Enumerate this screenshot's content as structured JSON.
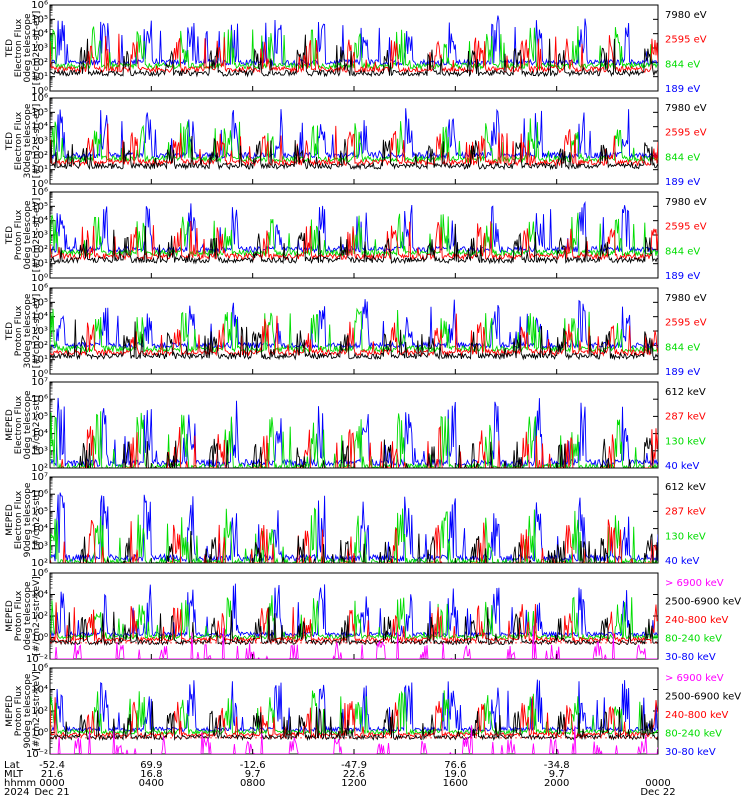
{
  "colors": {
    "blue": "#0000ff",
    "red": "#ff0000",
    "green": "#00dd00",
    "black": "#000000",
    "magenta": "#ff00ff"
  },
  "chart_data": {
    "type": "line",
    "panels": [
      {
        "ylabel_lines": [
          "TED",
          "Electron Flux",
          "0deg telescope",
          "[#/cm2-s-str-eV]"
        ],
        "yticks": [
          "10⁰",
          "10¹",
          "10²",
          "10³",
          "10⁴",
          "10⁵",
          "10⁶"
        ],
        "ylim_exp": [
          0,
          6
        ],
        "log": true,
        "baseline_exp": 2,
        "legend": [
          {
            "name": "7980 eV",
            "color": "#000000"
          },
          {
            "name": "2595 eV",
            "color": "#ff0000"
          },
          {
            "name": "844 eV",
            "color": "#00dd00"
          },
          {
            "name": "189 eV",
            "color": "#0000ff"
          }
        ]
      },
      {
        "ylabel_lines": [
          "TED",
          "Electron Flux",
          "30deg telescope",
          "[#/cm2-s-str-eV]"
        ],
        "yticks": [
          "10⁰",
          "10¹",
          "10²",
          "10³",
          "10⁴",
          "10⁵",
          "10⁶"
        ],
        "ylim_exp": [
          0,
          6
        ],
        "log": true,
        "baseline_exp": 2,
        "legend": [
          {
            "name": "7980 eV",
            "color": "#000000"
          },
          {
            "name": "2595 eV",
            "color": "#ff0000"
          },
          {
            "name": "844 eV",
            "color": "#00dd00"
          },
          {
            "name": "189 eV",
            "color": "#0000ff"
          }
        ]
      },
      {
        "ylabel_lines": [
          "TED",
          "Proton Flux",
          "0deg telescope",
          "[#/cm2-s-str-eV]"
        ],
        "yticks": [
          "10⁰",
          "10¹",
          "10²",
          "10³",
          "10⁴",
          "10⁵",
          "10⁶"
        ],
        "ylim_exp": [
          0,
          6
        ],
        "log": true,
        "baseline_exp": 2,
        "legend": [
          {
            "name": "7980 eV",
            "color": "#000000"
          },
          {
            "name": "2595 eV",
            "color": "#ff0000"
          },
          {
            "name": "844 eV",
            "color": "#00dd00"
          },
          {
            "name": "189 eV",
            "color": "#0000ff"
          }
        ]
      },
      {
        "ylabel_lines": [
          "TED",
          "Proton Flux",
          "30deg telescope",
          "[#/cm2-s-str-eV]"
        ],
        "yticks": [
          "10⁰",
          "10¹",
          "10²",
          "10³",
          "10⁴",
          "10⁵",
          "10⁶"
        ],
        "ylim_exp": [
          0,
          6
        ],
        "log": true,
        "baseline_exp": 2,
        "legend": [
          {
            "name": "7980 eV",
            "color": "#000000"
          },
          {
            "name": "2595 eV",
            "color": "#ff0000"
          },
          {
            "name": "844 eV",
            "color": "#00dd00"
          },
          {
            "name": "189 eV",
            "color": "#0000ff"
          }
        ]
      },
      {
        "ylabel_lines": [
          "MEPED",
          "Electron Flux",
          "0deg telescope",
          "[#/cm2-s-str]"
        ],
        "yticks": [
          "10²",
          "10³",
          "10⁴",
          "10⁵",
          "10⁶",
          "10⁷"
        ],
        "ylim_exp": [
          2,
          7
        ],
        "log": true,
        "baseline_exp": 2.3,
        "legend": [
          {
            "name": "612 keV",
            "color": "#000000"
          },
          {
            "name": "287 keV",
            "color": "#ff0000"
          },
          {
            "name": "130 keV",
            "color": "#00dd00"
          },
          {
            "name": "40 keV",
            "color": "#0000ff"
          }
        ]
      },
      {
        "ylabel_lines": [
          "MEPED",
          "Electron Flux",
          "90deg telescope",
          "[#/cm2-s-str]"
        ],
        "yticks": [
          "10²",
          "10³",
          "10⁴",
          "10⁵",
          "10⁶",
          "10⁷"
        ],
        "ylim_exp": [
          2,
          7
        ],
        "log": true,
        "baseline_exp": 2.3,
        "legend": [
          {
            "name": "612 keV",
            "color": "#000000"
          },
          {
            "name": "287 keV",
            "color": "#ff0000"
          },
          {
            "name": "130 keV",
            "color": "#00dd00"
          },
          {
            "name": "40 keV",
            "color": "#0000ff"
          }
        ]
      },
      {
        "ylabel_lines": [
          "MEPED",
          "Proton Flux",
          "0deg telescope",
          "[#/cm2-s-str-keV]"
        ],
        "yticks": [
          "10⁻²",
          "10⁰",
          "10²",
          "10⁴",
          "10⁶"
        ],
        "ylim_exp": [
          -2,
          6
        ],
        "log": true,
        "baseline_exp": 0.3,
        "legend": [
          {
            "name": "> 6900 keV",
            "color": "#ff00ff"
          },
          {
            "name": "2500-6900 keV",
            "color": "#000000"
          },
          {
            "name": "240-800 keV",
            "color": "#ff0000"
          },
          {
            "name": "80-240 keV",
            "color": "#00dd00"
          },
          {
            "name": "30-80 keV",
            "color": "#0000ff"
          }
        ]
      },
      {
        "ylabel_lines": [
          "MEPED",
          "Proton Flux",
          "90deg telescope",
          "[#/cm2-s-str-keV]"
        ],
        "yticks": [
          "10⁻²",
          "10⁰",
          "10²",
          "10⁴",
          "10⁶"
        ],
        "ylim_exp": [
          -2,
          6
        ],
        "log": true,
        "baseline_exp": 0.3,
        "legend": [
          {
            "name": "> 6900 keV",
            "color": "#ff00ff"
          },
          {
            "name": "2500-6900 keV",
            "color": "#000000"
          },
          {
            "name": "240-800 keV",
            "color": "#ff0000"
          },
          {
            "name": "80-240 keV",
            "color": "#00dd00"
          },
          {
            "name": "30-80 keV",
            "color": "#0000ff"
          }
        ]
      }
    ],
    "x_axis": {
      "row_labels": [
        "Lat",
        "MLT",
        "hhmm",
        "2024"
      ],
      "ticks": [
        {
          "lat": "-52.4",
          "mlt": "21.6",
          "hhmm": "0000",
          "date": "Dec 21"
        },
        {
          "lat": "69.9",
          "mlt": "16.8",
          "hhmm": "0400",
          "date": ""
        },
        {
          "lat": "-12.6",
          "mlt": "9.7",
          "hhmm": "0800",
          "date": ""
        },
        {
          "lat": "-47.9",
          "mlt": "22.6",
          "hhmm": "1200",
          "date": ""
        },
        {
          "lat": "76.6",
          "mlt": "19.0",
          "hhmm": "1600",
          "date": ""
        },
        {
          "lat": "-34.8",
          "mlt": "9.7",
          "hhmm": "2000",
          "date": ""
        },
        {
          "lat": "",
          "mlt": "",
          "hhmm": "0000",
          "date": "Dec 22"
        }
      ]
    }
  }
}
